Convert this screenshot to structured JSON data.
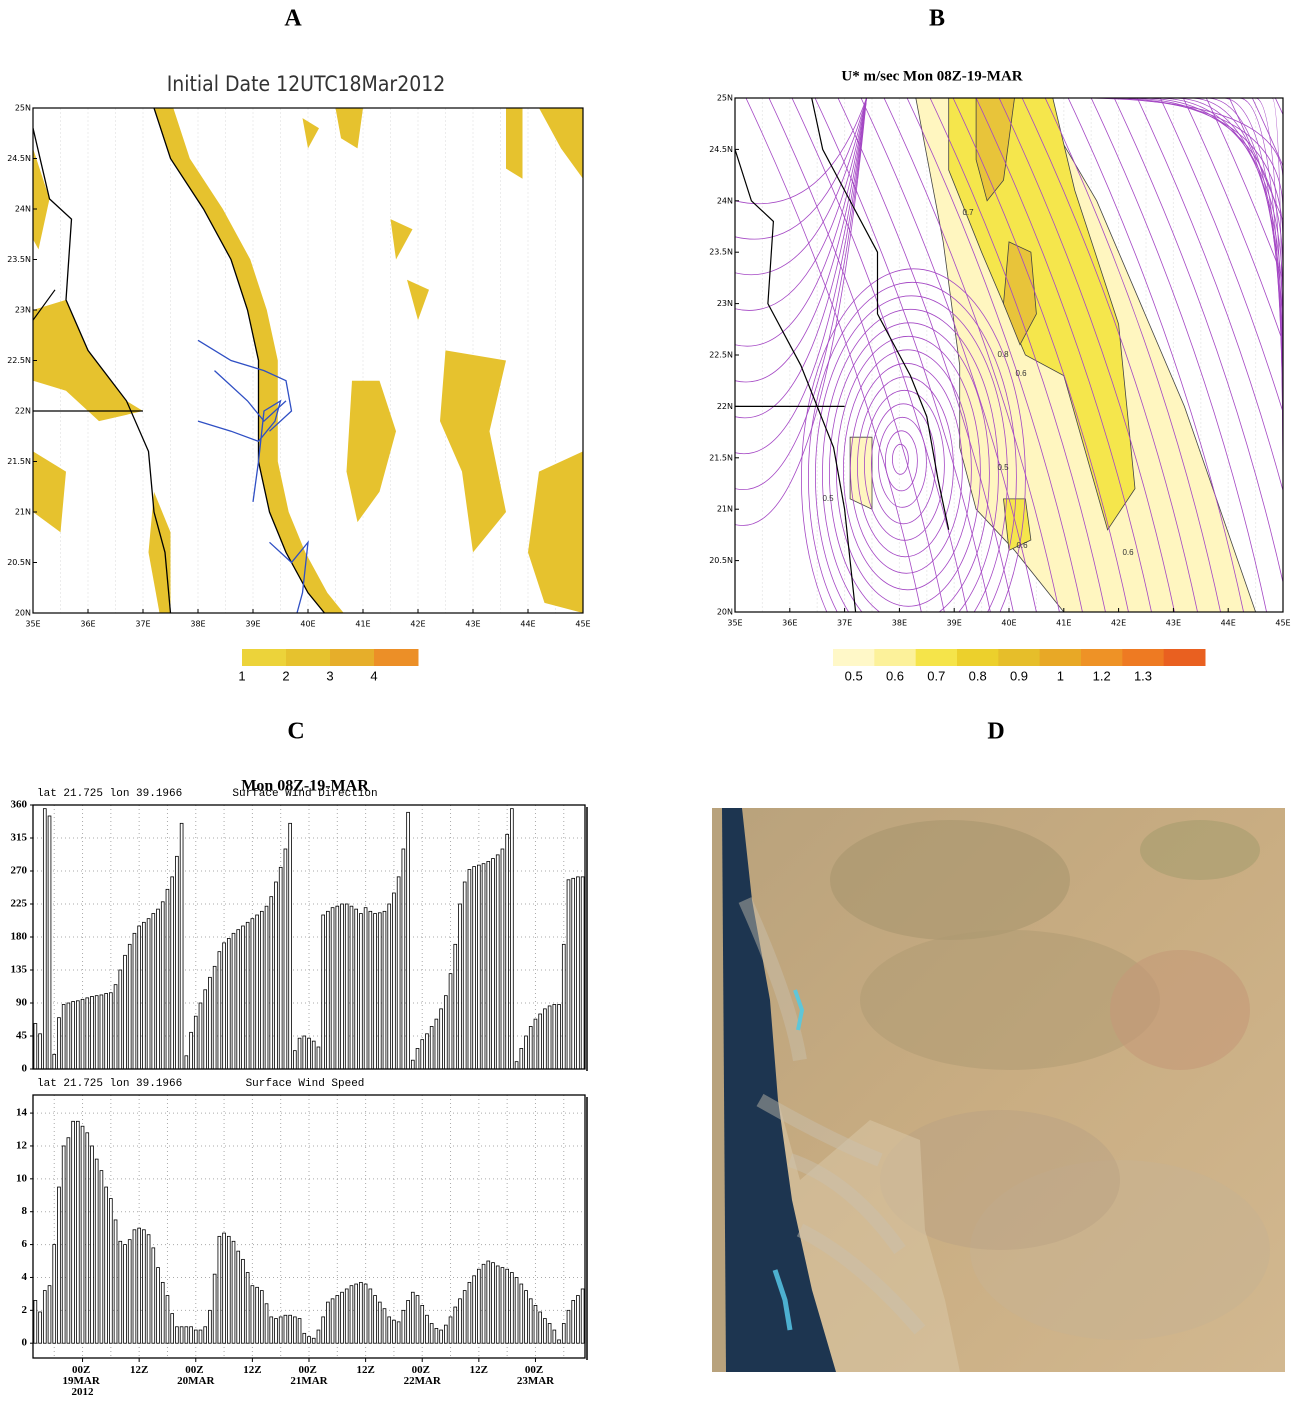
{
  "panel_labels": [
    "A",
    "B",
    "C",
    "D"
  ],
  "chart_data": [
    {
      "type": "map",
      "title": "Initial Date 12UTC18Mar2012",
      "xlim": [
        35,
        45
      ],
      "ylim": [
        20,
        25
      ],
      "xticks": [
        {
          "value": 35,
          "label": "35E"
        },
        {
          "value": 36,
          "label": "36E"
        },
        {
          "value": 37,
          "label": "37E"
        },
        {
          "value": 38,
          "label": "38E"
        },
        {
          "value": 39,
          "label": "39E"
        },
        {
          "value": 40,
          "label": "40E"
        },
        {
          "value": 41,
          "label": "41E"
        },
        {
          "value": 42,
          "label": "42E"
        },
        {
          "value": 43,
          "label": "43E"
        },
        {
          "value": 44,
          "label": "44E"
        },
        {
          "value": 45,
          "label": "45E"
        }
      ],
      "yticks": [
        {
          "value": 20,
          "label": "20N"
        },
        {
          "value": 20.5,
          "label": "20.5N"
        },
        {
          "value": 21,
          "label": "21N"
        },
        {
          "value": 21.5,
          "label": "21.5N"
        },
        {
          "value": 22,
          "label": "22N"
        },
        {
          "value": 22.5,
          "label": "22.5N"
        },
        {
          "value": 23,
          "label": "23N"
        },
        {
          "value": 23.5,
          "label": "23.5N"
        },
        {
          "value": 24,
          "label": "24N"
        },
        {
          "value": 24.5,
          "label": "24.5N"
        },
        {
          "value": 25,
          "label": "25N"
        }
      ],
      "colorbar": {
        "levels": [
          1,
          2,
          3,
          4
        ],
        "colors": [
          "#ecd33a",
          "#e6c22e",
          "#e6ae2a",
          "#ec8f27"
        ]
      }
    },
    {
      "type": "map",
      "title": "U* m/sec  Mon 08Z-19-MAR",
      "xlim": [
        35,
        45
      ],
      "ylim": [
        20,
        25
      ],
      "xticks": [
        {
          "value": 35,
          "label": "35E"
        },
        {
          "value": 36,
          "label": "36E"
        },
        {
          "value": 37,
          "label": "37E"
        },
        {
          "value": 38,
          "label": "38E"
        },
        {
          "value": 39,
          "label": "39E"
        },
        {
          "value": 40,
          "label": "40E"
        },
        {
          "value": 41,
          "label": "41E"
        },
        {
          "value": 42,
          "label": "42E"
        },
        {
          "value": 43,
          "label": "43E"
        },
        {
          "value": 44,
          "label": "44E"
        },
        {
          "value": 45,
          "label": "45E"
        }
      ],
      "yticks": [
        {
          "value": 20,
          "label": "20N"
        },
        {
          "value": 20.5,
          "label": "20.5N"
        },
        {
          "value": 21,
          "label": "21N"
        },
        {
          "value": 21.5,
          "label": "21.5N"
        },
        {
          "value": 22,
          "label": "22N"
        },
        {
          "value": 22.5,
          "label": "22.5N"
        },
        {
          "value": 23,
          "label": "23N"
        },
        {
          "value": 23.5,
          "label": "23.5N"
        },
        {
          "value": 24,
          "label": "24N"
        },
        {
          "value": 24.5,
          "label": "24.5N"
        },
        {
          "value": 25,
          "label": "25N"
        }
      ],
      "colorbar": {
        "levels": [
          0.5,
          0.6,
          0.7,
          0.8,
          0.9,
          1,
          1.2,
          1.3
        ],
        "colors": [
          "#fff8c8",
          "#fcf19a",
          "#f5e44a",
          "#ecd02c",
          "#e6be2a",
          "#e8a826",
          "#ee9226",
          "#ee7a22",
          "#e96020"
        ]
      },
      "annotations": [
        0.7,
        0.8,
        0.6,
        0.5,
        0.5,
        0.6,
        0.6
      ]
    },
    {
      "type": "bar",
      "title": "Mon 08Z-19-MAR",
      "subtitle": "Surface Wind Direction",
      "header": "lat 21.725 lon 39.1966",
      "ylim": [
        0,
        360
      ],
      "yticks": [
        0,
        45,
        90,
        135,
        180,
        225,
        270,
        315,
        360
      ],
      "grid": true,
      "color": "#000000",
      "values": [
        62,
        48,
        355,
        345,
        20,
        70,
        88,
        90,
        92,
        93,
        95,
        97,
        99,
        100,
        101,
        103,
        104,
        115,
        135,
        155,
        170,
        185,
        195,
        200,
        205,
        212,
        218,
        228,
        245,
        262,
        290,
        335,
        18,
        50,
        72,
        90,
        108,
        125,
        140,
        160,
        172,
        178,
        185,
        190,
        195,
        200,
        205,
        210,
        215,
        222,
        235,
        255,
        275,
        300,
        335,
        25,
        42,
        45,
        42,
        38,
        30,
        210,
        215,
        220,
        222,
        225,
        225,
        222,
        218,
        212,
        220,
        215,
        212,
        213,
        215,
        225,
        240,
        262,
        300,
        350,
        12,
        28,
        40,
        48,
        58,
        68,
        82,
        100,
        130,
        170,
        225,
        255,
        272,
        276,
        278,
        280,
        283,
        287,
        292,
        300,
        320,
        355,
        10,
        28,
        45,
        58,
        68,
        75,
        82,
        86,
        88,
        88,
        170,
        258,
        260,
        262,
        262
      ]
    },
    {
      "type": "bar",
      "subtitle": "Surface Wind Speed",
      "header": "lat 21.725 lon 39.1966",
      "ylim": [
        -0.9,
        15.1
      ],
      "yticks": [
        0,
        2,
        4,
        6,
        8,
        10,
        12,
        14
      ],
      "grid": true,
      "color": "#000000",
      "categories": [
        null,
        null,
        null,
        null,
        null,
        null,
        null,
        null,
        null,
        null,
        "00Z 19MAR 2012",
        null,
        null,
        null,
        null,
        null,
        null,
        null,
        null,
        null,
        null,
        null,
        "12Z",
        null,
        null,
        null,
        null,
        null,
        null,
        null,
        null,
        null,
        null,
        null,
        "00Z 20MAR",
        null,
        null,
        null,
        null,
        null,
        null,
        null,
        null,
        null,
        null,
        null,
        "12Z",
        null,
        null,
        null,
        null,
        null,
        null,
        null,
        null,
        null,
        null,
        null,
        "00Z 21MAR",
        null,
        null,
        null,
        null,
        null,
        null,
        null,
        null,
        null,
        null,
        null,
        "12Z",
        null,
        null,
        null,
        null,
        null,
        null,
        null,
        null,
        null,
        null,
        null,
        "00Z 22MAR",
        null,
        null,
        null,
        null,
        null,
        null,
        null,
        null,
        null,
        null,
        null,
        "12Z",
        null,
        null,
        null,
        null,
        null,
        null,
        null,
        null,
        null,
        null,
        null,
        "00Z 23MAR",
        null,
        null,
        null,
        null,
        null,
        null,
        null,
        null,
        null,
        null
      ],
      "values": [
        2.6,
        1.9,
        3.2,
        3.5,
        6.0,
        9.5,
        12.0,
        12.5,
        13.5,
        13.5,
        13.2,
        12.8,
        12.0,
        11.2,
        10.5,
        9.5,
        8.8,
        7.5,
        6.2,
        6.0,
        6.3,
        6.9,
        7.0,
        6.9,
        6.6,
        5.8,
        4.6,
        3.7,
        2.9,
        1.8,
        1.0,
        1.0,
        1.0,
        1.0,
        0.8,
        0.8,
        1.0,
        2.0,
        4.2,
        6.5,
        6.7,
        6.5,
        6.2,
        5.6,
        5.1,
        4.3,
        3.5,
        3.4,
        3.2,
        2.4,
        1.6,
        1.5,
        1.6,
        1.7,
        1.7,
        1.6,
        1.5,
        0.6,
        0.4,
        0.3,
        0.8,
        1.6,
        2.5,
        2.7,
        2.9,
        3.1,
        3.3,
        3.5,
        3.6,
        3.7,
        3.6,
        3.3,
        2.9,
        2.5,
        2.1,
        1.6,
        1.4,
        1.3,
        2.0,
        2.6,
        3.1,
        2.9,
        2.3,
        1.7,
        1.2,
        0.9,
        0.8,
        1.1,
        1.6,
        2.2,
        2.7,
        3.2,
        3.7,
        4.1,
        4.5,
        4.8,
        5.0,
        4.9,
        4.7,
        4.6,
        4.5,
        4.3,
        4.0,
        3.6,
        3.2,
        2.7,
        2.3,
        1.9,
        1.5,
        1.2,
        0.8,
        0.2,
        1.2,
        2.0,
        2.6,
        2.9,
        3.3
      ]
    }
  ]
}
